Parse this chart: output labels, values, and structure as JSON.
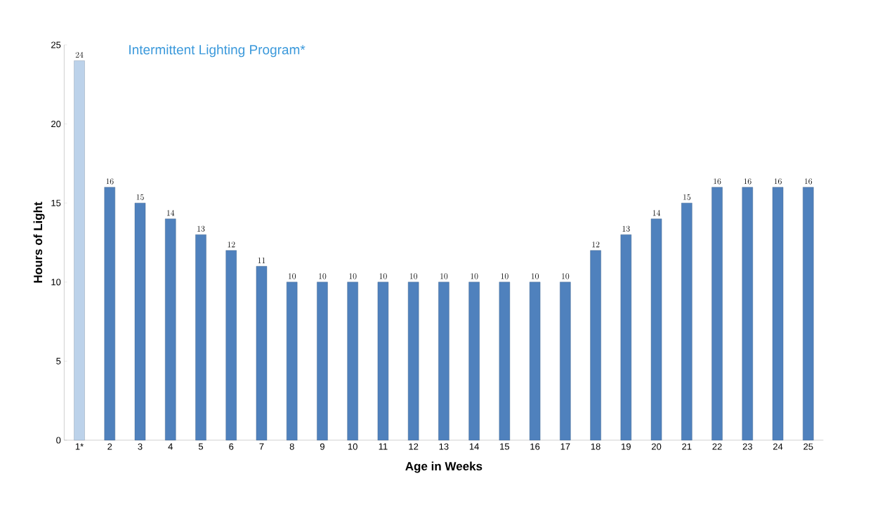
{
  "chart_data": {
    "type": "bar",
    "title": "Intermittent Lighting Program*",
    "xlabel": "Age in Weeks",
    "ylabel": "Hours of Light",
    "categories": [
      "1*",
      "2",
      "3",
      "4",
      "5",
      "6",
      "7",
      "8",
      "9",
      "10",
      "11",
      "12",
      "13",
      "14",
      "15",
      "16",
      "17",
      "18",
      "19",
      "20",
      "21",
      "22",
      "23",
      "24",
      "25"
    ],
    "values": [
      24,
      16,
      15,
      14,
      13,
      12,
      11,
      10,
      10,
      10,
      10,
      10,
      10,
      10,
      10,
      10,
      10,
      12,
      13,
      14,
      15,
      16,
      16,
      16,
      16
    ],
    "colors": [
      "#bcd2ea",
      "#4f81bd",
      "#4f81bd",
      "#4f81bd",
      "#4f81bd",
      "#4f81bd",
      "#4f81bd",
      "#4f81bd",
      "#4f81bd",
      "#4f81bd",
      "#4f81bd",
      "#4f81bd",
      "#4f81bd",
      "#4f81bd",
      "#4f81bd",
      "#4f81bd",
      "#4f81bd",
      "#4f81bd",
      "#4f81bd",
      "#4f81bd",
      "#4f81bd",
      "#4f81bd",
      "#4f81bd",
      "#4f81bd",
      "#4f81bd"
    ],
    "ylim": [
      0,
      25
    ],
    "yticks": [
      0,
      5,
      10,
      15,
      20,
      25
    ],
    "data_labels": true
  }
}
